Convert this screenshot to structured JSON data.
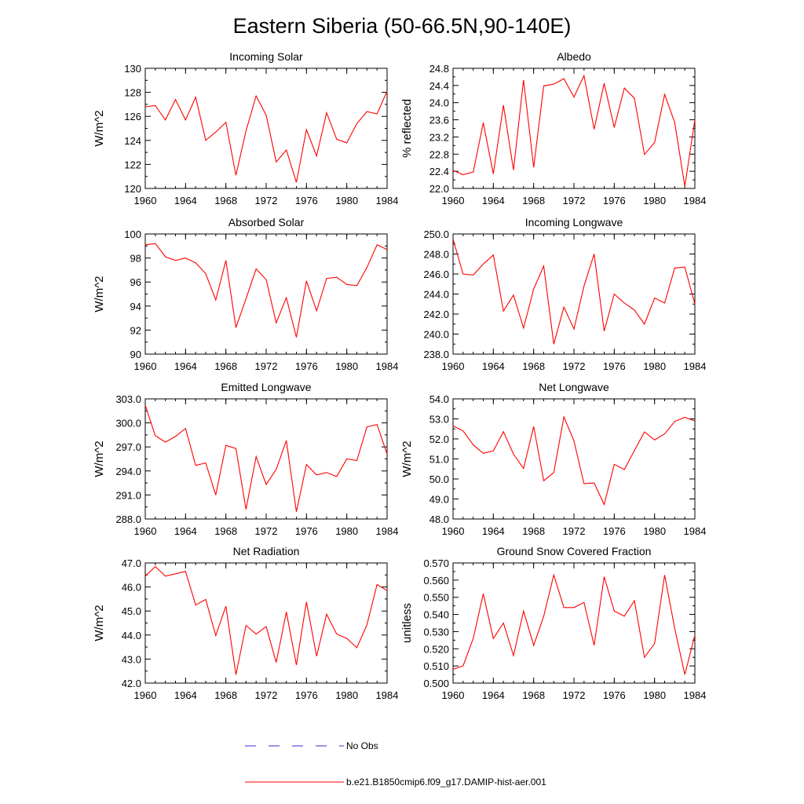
{
  "title": "Eastern Siberia (50-66.5N,90-140E)",
  "legend": {
    "obs_label": "No Obs",
    "model_label": "b.e21.B1850cmip6.f09_g17.DAMIP-hist-aer.001",
    "obs_color": "#3333cc",
    "model_color": "#ff0000"
  },
  "chart_data": [
    {
      "type": "line",
      "title": "Incoming Solar",
      "ylabel": "W/m^2",
      "xlim": [
        1960,
        1984
      ],
      "ylim": [
        120,
        130
      ],
      "xticks": [
        1960,
        1964,
        1968,
        1972,
        1976,
        1980,
        1984
      ],
      "yticks": [
        120,
        122,
        124,
        126,
        128,
        130
      ],
      "yticklabels": [
        "120",
        "122",
        "124",
        "126",
        "128",
        "130"
      ],
      "x": [
        1960,
        1961,
        1962,
        1963,
        1964,
        1965,
        1966,
        1967,
        1968,
        1969,
        1970,
        1971,
        1972,
        1973,
        1974,
        1975,
        1976,
        1977,
        1978,
        1979,
        1980,
        1981,
        1982,
        1983,
        1984
      ],
      "values": [
        126.8,
        126.9,
        125.7,
        127.4,
        125.7,
        127.6,
        124.0,
        124.7,
        125.5,
        121.1,
        124.8,
        127.7,
        126.1,
        122.2,
        123.2,
        120.5,
        124.9,
        122.7,
        126.3,
        124.1,
        123.8,
        125.4,
        126.4,
        126.2,
        128.1
      ]
    },
    {
      "type": "line",
      "title": "Albedo",
      "ylabel": "% reflected",
      "xlim": [
        1960,
        1984
      ],
      "ylim": [
        22.0,
        24.8
      ],
      "xticks": [
        1960,
        1964,
        1968,
        1972,
        1976,
        1980,
        1984
      ],
      "yticks": [
        22.0,
        22.4,
        22.8,
        23.2,
        23.6,
        24.0,
        24.4,
        24.8
      ],
      "yticklabels": [
        "22.0",
        "22.4",
        "22.8",
        "23.2",
        "23.6",
        "24.0",
        "24.4",
        "24.8"
      ],
      "x": [
        1960,
        1961,
        1962,
        1963,
        1964,
        1965,
        1966,
        1967,
        1968,
        1969,
        1970,
        1971,
        1972,
        1973,
        1974,
        1975,
        1976,
        1977,
        1978,
        1979,
        1980,
        1981,
        1982,
        1983,
        1984
      ],
      "values": [
        22.42,
        22.32,
        22.38,
        23.53,
        22.34,
        23.94,
        22.43,
        24.53,
        22.49,
        24.39,
        24.43,
        24.56,
        24.13,
        24.63,
        23.38,
        24.45,
        23.42,
        24.34,
        24.1,
        22.79,
        23.07,
        24.19,
        23.54,
        22.05,
        23.6
      ]
    },
    {
      "type": "line",
      "title": "Absorbed Solar",
      "ylabel": "W/m^2",
      "xlim": [
        1960,
        1984
      ],
      "ylim": [
        90,
        100
      ],
      "xticks": [
        1960,
        1964,
        1968,
        1972,
        1976,
        1980,
        1984
      ],
      "yticks": [
        90,
        92,
        94,
        96,
        98,
        100
      ],
      "yticklabels": [
        "90",
        "92",
        "94",
        "96",
        "98",
        "100"
      ],
      "x": [
        1960,
        1961,
        1962,
        1963,
        1964,
        1965,
        1966,
        1967,
        1968,
        1969,
        1970,
        1971,
        1972,
        1973,
        1974,
        1975,
        1976,
        1977,
        1978,
        1979,
        1980,
        1981,
        1982,
        1983,
        1984
      ],
      "values": [
        99.1,
        99.2,
        98.1,
        97.8,
        98.0,
        97.6,
        96.7,
        94.5,
        97.8,
        92.2,
        94.6,
        97.1,
        96.2,
        92.6,
        94.7,
        91.4,
        96.1,
        93.6,
        96.3,
        96.4,
        95.8,
        95.7,
        97.2,
        99.1,
        98.7
      ]
    },
    {
      "type": "line",
      "title": "Incoming Longwave",
      "ylabel": "",
      "xlim": [
        1960,
        1984
      ],
      "ylim": [
        238.0,
        250.0
      ],
      "xticks": [
        1960,
        1964,
        1968,
        1972,
        1976,
        1980,
        1984
      ],
      "yticks": [
        238,
        240,
        242,
        244,
        246,
        248,
        250
      ],
      "yticklabels": [
        "238.0",
        "240.0",
        "242.0",
        "244.0",
        "246.0",
        "248.0",
        "250.0"
      ],
      "x": [
        1960,
        1961,
        1962,
        1963,
        1964,
        1965,
        1966,
        1967,
        1968,
        1969,
        1970,
        1971,
        1972,
        1973,
        1974,
        1975,
        1976,
        1977,
        1978,
        1979,
        1980,
        1981,
        1982,
        1983,
        1984
      ],
      "values": [
        249.5,
        246.0,
        245.9,
        247.0,
        247.9,
        242.3,
        243.9,
        240.6,
        244.5,
        246.8,
        239.0,
        242.7,
        240.5,
        244.8,
        248.0,
        240.3,
        244.0,
        243.1,
        242.4,
        241.0,
        243.6,
        243.1,
        246.6,
        246.7,
        243.0
      ]
    },
    {
      "type": "line",
      "title": "Emitted Longwave",
      "ylabel": "W/m^2",
      "xlim": [
        1960,
        1984
      ],
      "ylim": [
        288.0,
        303.0
      ],
      "xticks": [
        1960,
        1964,
        1968,
        1972,
        1976,
        1980,
        1984
      ],
      "yticks": [
        288,
        291,
        294,
        297,
        300,
        303
      ],
      "yticklabels": [
        "288.0",
        "291.0",
        "294.0",
        "297.0",
        "300.0",
        "303.0"
      ],
      "x": [
        1960,
        1961,
        1962,
        1963,
        1964,
        1965,
        1966,
        1967,
        1968,
        1969,
        1970,
        1971,
        1972,
        1973,
        1974,
        1975,
        1976,
        1977,
        1978,
        1979,
        1980,
        1981,
        1982,
        1983,
        1984
      ],
      "values": [
        302.2,
        298.4,
        297.6,
        298.3,
        299.3,
        294.7,
        295.0,
        291.0,
        297.2,
        296.8,
        289.2,
        295.8,
        292.3,
        294.2,
        297.8,
        288.9,
        294.8,
        293.5,
        293.8,
        293.3,
        295.5,
        295.3,
        299.5,
        299.8,
        296.1
      ]
    },
    {
      "type": "line",
      "title": "Net Longwave",
      "ylabel": "W/m^2",
      "xlim": [
        1960,
        1984
      ],
      "ylim": [
        48.0,
        54.0
      ],
      "xticks": [
        1960,
        1964,
        1968,
        1972,
        1976,
        1980,
        1984
      ],
      "yticks": [
        48,
        49,
        50,
        51,
        52,
        53,
        54
      ],
      "yticklabels": [
        "48.0",
        "49.0",
        "50.0",
        "51.0",
        "52.0",
        "53.0",
        "54.0"
      ],
      "x": [
        1960,
        1961,
        1962,
        1963,
        1964,
        1965,
        1966,
        1967,
        1968,
        1969,
        1970,
        1971,
        1972,
        1973,
        1974,
        1975,
        1976,
        1977,
        1978,
        1979,
        1980,
        1981,
        1982,
        1983,
        1984
      ],
      "values": [
        52.65,
        52.4,
        51.7,
        51.28,
        51.4,
        52.36,
        51.24,
        50.52,
        52.62,
        49.91,
        50.32,
        53.1,
        51.9,
        49.76,
        49.8,
        48.72,
        50.73,
        50.47,
        51.42,
        52.35,
        51.95,
        52.25,
        52.87,
        53.08,
        52.9
      ]
    },
    {
      "type": "line",
      "title": "Net Radiation",
      "ylabel": "W/m^2",
      "xlim": [
        1960,
        1984
      ],
      "ylim": [
        42.0,
        47.0
      ],
      "xticks": [
        1960,
        1964,
        1968,
        1972,
        1976,
        1980,
        1984
      ],
      "yticks": [
        42,
        43,
        44,
        45,
        46,
        47
      ],
      "yticklabels": [
        "42.0",
        "43.0",
        "44.0",
        "45.0",
        "46.0",
        "47.0"
      ],
      "x": [
        1960,
        1961,
        1962,
        1963,
        1964,
        1965,
        1966,
        1967,
        1968,
        1969,
        1970,
        1971,
        1972,
        1973,
        1974,
        1975,
        1976,
        1977,
        1978,
        1979,
        1980,
        1981,
        1982,
        1983,
        1984
      ],
      "values": [
        46.45,
        46.85,
        46.45,
        46.55,
        46.65,
        45.25,
        45.48,
        43.98,
        45.2,
        42.35,
        44.4,
        44.04,
        44.35,
        42.86,
        44.96,
        42.75,
        45.38,
        43.12,
        44.87,
        44.04,
        43.86,
        43.47,
        44.42,
        46.1,
        45.85
      ]
    },
    {
      "type": "line",
      "title": "Ground Snow Covered Fraction",
      "ylabel": "unitless",
      "xlim": [
        1960,
        1984
      ],
      "ylim": [
        0.5,
        0.57
      ],
      "xticks": [
        1960,
        1964,
        1968,
        1972,
        1976,
        1980,
        1984
      ],
      "yticks": [
        0.5,
        0.51,
        0.52,
        0.53,
        0.54,
        0.55,
        0.56,
        0.57
      ],
      "yticklabels": [
        "0.500",
        "0.510",
        "0.520",
        "0.530",
        "0.540",
        "0.550",
        "0.560",
        "0.570"
      ],
      "x": [
        1960,
        1961,
        1962,
        1963,
        1964,
        1965,
        1966,
        1967,
        1968,
        1969,
        1970,
        1971,
        1972,
        1973,
        1974,
        1975,
        1976,
        1977,
        1978,
        1979,
        1980,
        1981,
        1982,
        1983,
        1984
      ],
      "values": [
        0.508,
        0.51,
        0.526,
        0.552,
        0.526,
        0.535,
        0.516,
        0.542,
        0.522,
        0.539,
        0.563,
        0.544,
        0.544,
        0.547,
        0.522,
        0.562,
        0.542,
        0.539,
        0.548,
        0.515,
        0.523,
        0.563,
        0.532,
        0.505,
        0.528
      ]
    }
  ]
}
